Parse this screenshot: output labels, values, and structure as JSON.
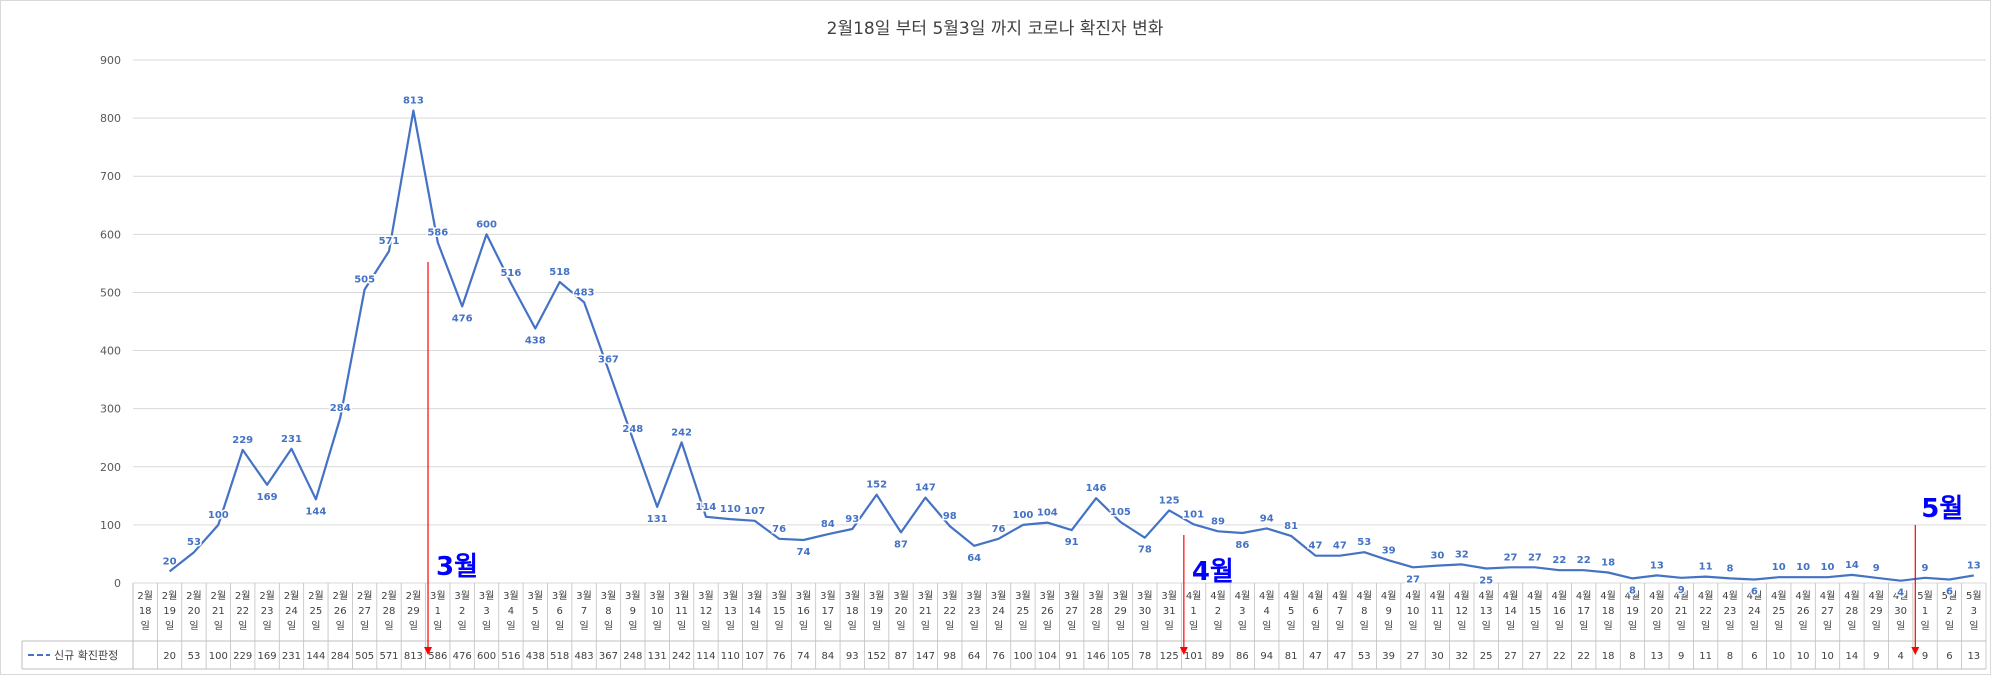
{
  "chart_data": {
    "type": "line",
    "title": "2월18일 부터 5월3일 까지 코로나 확진자 변화",
    "xlabel": "",
    "ylabel": "",
    "ylim": [
      0,
      900
    ],
    "yticks": [
      0,
      100,
      200,
      300,
      400,
      500,
      600,
      700,
      800,
      900
    ],
    "grid": true,
    "legend": "bottom-left (table)",
    "categories": [
      "2월 18일",
      "2월 19일",
      "2월 20일",
      "2월 21일",
      "2월 22일",
      "2월 23일",
      "2월 24일",
      "2월 25일",
      "2월 26일",
      "2월 27일",
      "2월 28일",
      "2월 29일",
      "3월 1일",
      "3월 2일",
      "3월 3일",
      "3월 4일",
      "3월 5일",
      "3월 6일",
      "3월 7일",
      "3월 8일",
      "3월 9일",
      "3월 10일",
      "3월 11일",
      "3월 12일",
      "3월 13일",
      "3월 14일",
      "3월 15일",
      "3월 16일",
      "3월 17일",
      "3월 18일",
      "3월 19일",
      "3월 20일",
      "3월 21일",
      "3월 22일",
      "3월 23일",
      "3월 24일",
      "3월 25일",
      "3월 26일",
      "3월 27일",
      "3월 28일",
      "3월 29일",
      "3월 30일",
      "3월 31일",
      "4월 1일",
      "4월 2일",
      "4월 3일",
      "4월 4일",
      "4월 5일",
      "4월 6일",
      "4월 7일",
      "4월 8일",
      "4월 9일",
      "4월 10일",
      "4월 11일",
      "4월 12일",
      "4월 13일",
      "4월 14일",
      "4월 15일",
      "4월 16일",
      "4월 17일",
      "4월 18일",
      "4월 19일",
      "4월 20일",
      "4월 21일",
      "4월 22일",
      "4월 23일",
      "4월 24일",
      "4월 25일",
      "4월 26일",
      "4월 27일",
      "4월 28일",
      "4월 29일",
      "4월 30일",
      "5월 1일",
      "5월 2일",
      "5월 3일"
    ],
    "series": [
      {
        "name": "신규 확진판정",
        "color": "#4472c4",
        "values": [
          null,
          20,
          53,
          100,
          229,
          169,
          231,
          144,
          284,
          505,
          571,
          813,
          586,
          476,
          600,
          516,
          438,
          518,
          483,
          367,
          248,
          131,
          242,
          114,
          110,
          107,
          76,
          74,
          84,
          93,
          152,
          87,
          147,
          98,
          64,
          76,
          100,
          104,
          91,
          146,
          105,
          78,
          125,
          101,
          89,
          86,
          94,
          81,
          47,
          47,
          53,
          39,
          27,
          30,
          32,
          25,
          27,
          27,
          22,
          22,
          18,
          8,
          13,
          9,
          11,
          8,
          6,
          10,
          10,
          10,
          14,
          9,
          4,
          9,
          6,
          13
        ]
      }
    ],
    "annotations": [
      {
        "text": "3월",
        "category_index": 12,
        "color": "#0000ff"
      },
      {
        "text": "4월",
        "category_index": 43,
        "color": "#0000ff"
      },
      {
        "text": "5월",
        "category_index": 73,
        "color": "#0000ff"
      }
    ],
    "arrow_color": "#ff0000"
  }
}
